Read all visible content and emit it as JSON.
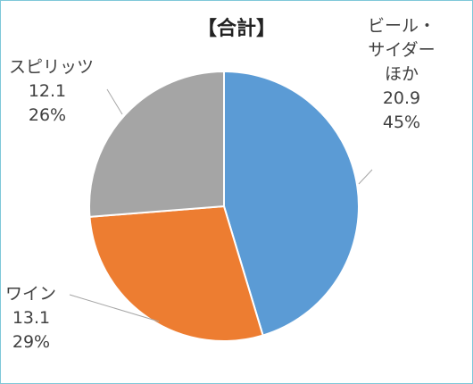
{
  "chart_data": {
    "type": "pie",
    "title": "【合計】",
    "slices": [
      {
        "name": "ビール・サイダーほか",
        "value": 20.9,
        "percent": "45%",
        "color": "#5b9bd5"
      },
      {
        "name": "ワイン",
        "value": 13.1,
        "percent": "29%",
        "color": "#ed7d31"
      },
      {
        "name": "スピリッツ",
        "value": 12.1,
        "percent": "26%",
        "color": "#a5a5a5"
      }
    ],
    "labels": {
      "beer": {
        "line1": "ビール・",
        "line2": "サイダー",
        "line3": "ほか",
        "value": "20.9",
        "percent": "45%"
      },
      "wine": {
        "line1": "ワイン",
        "value": "13.1",
        "percent": "29%"
      },
      "spirits": {
        "line1": "スピリッツ",
        "value": "12.1",
        "percent": "26%"
      }
    },
    "legend": "none"
  }
}
